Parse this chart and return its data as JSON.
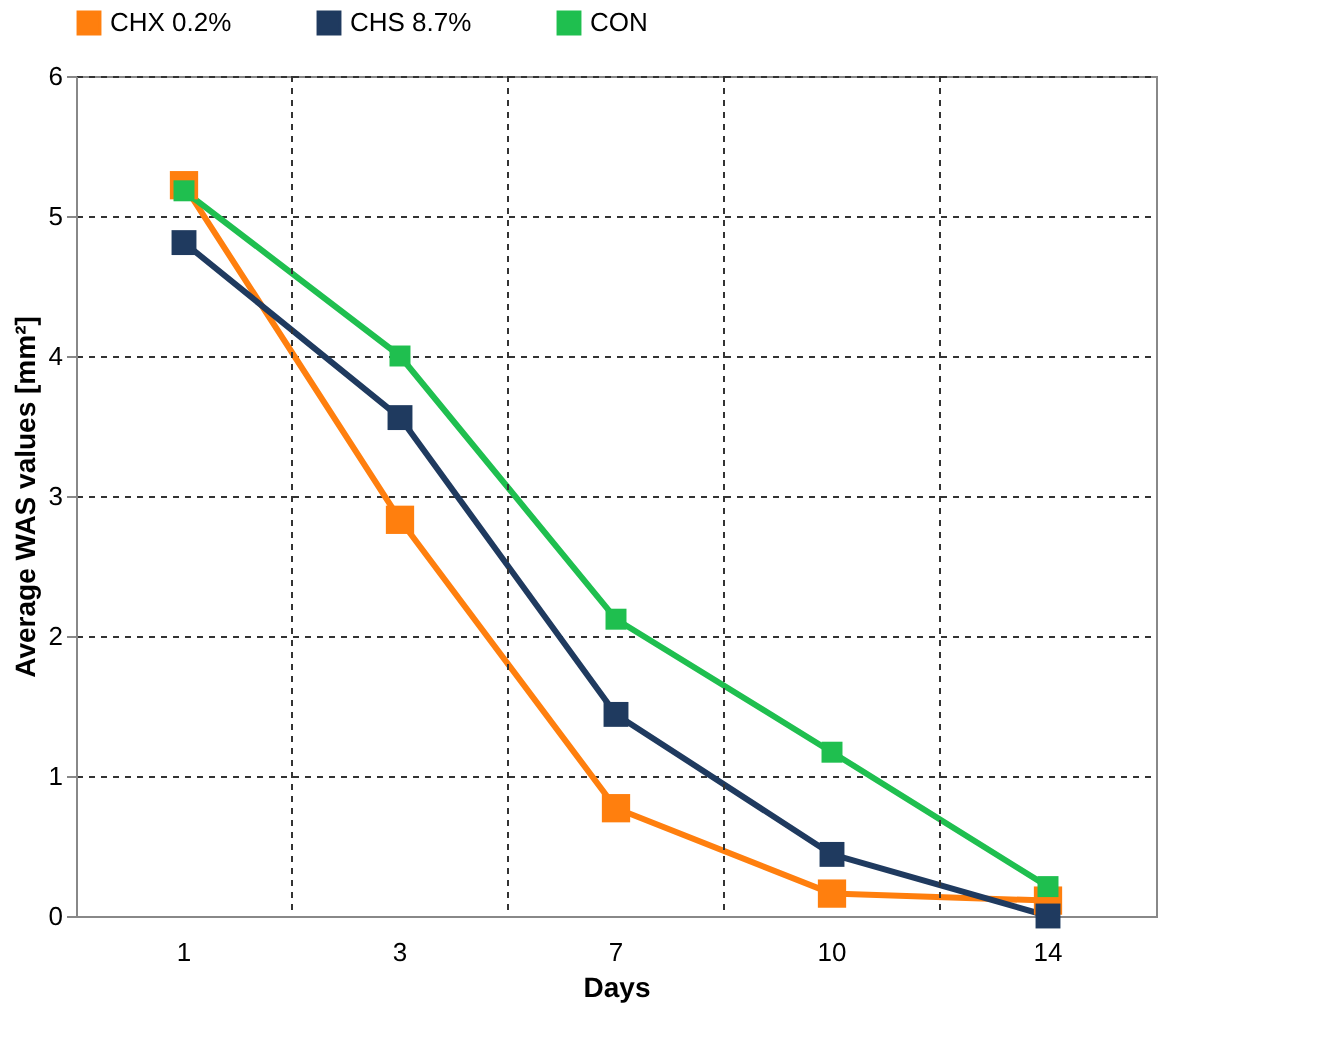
{
  "chart_data": {
    "type": "line",
    "xlabel": "Days",
    "ylabel": "Average WAS values [mm²]",
    "categories": [
      "1",
      "3",
      "7",
      "10",
      "14"
    ],
    "series": [
      {
        "name": "CHX 0.2%",
        "color": "#ff7f0e",
        "values": [
          5.22,
          2.83,
          0.77,
          0.16,
          0.11
        ]
      },
      {
        "name": "CHS 8.7%",
        "color": "#1f3a5f",
        "values": [
          4.81,
          3.56,
          1.44,
          0.44,
          0.0
        ]
      },
      {
        "name": "CON",
        "color": "#1fbf4f",
        "values": [
          5.18,
          4.0,
          2.12,
          1.17,
          0.21
        ]
      }
    ],
    "ylim": [
      0,
      6
    ],
    "yticks": [
      0,
      1,
      2,
      3,
      4,
      5,
      6
    ],
    "grid": true,
    "legend": "top",
    "marker": "square",
    "line_style": "solid"
  }
}
